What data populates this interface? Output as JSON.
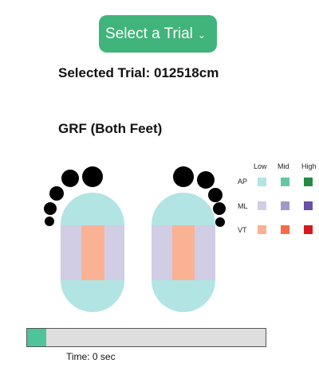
{
  "trial_select": {
    "label": "Select a Trial",
    "chevron": "⌄"
  },
  "selected_trial": {
    "prefix": "Selected Trial:",
    "value": "012518cm"
  },
  "grf_title": "GRF (Both Feet)",
  "legend": {
    "levels": [
      "Low",
      "Mid",
      "High"
    ],
    "rows": [
      {
        "label": "AP",
        "colors": [
          "#b2e4e3",
          "#66c8a3",
          "#238b45"
        ]
      },
      {
        "label": "ML",
        "colors": [
          "#d0cde4",
          "#9e9ac8",
          "#6a51a3"
        ]
      },
      {
        "label": "VT",
        "colors": [
          "#fbb194",
          "#f86b48",
          "#d7191c"
        ]
      }
    ]
  },
  "feet": {
    "heel_toe_color": "#b2e4e3",
    "mid_color": "#d0cde4",
    "center_color": "#fbb194",
    "toe_color": "#000000"
  },
  "progress": {
    "fraction": 0.08,
    "fill_color": "#4fc39a"
  },
  "time": {
    "prefix": "Time:",
    "value": "0 sec"
  }
}
